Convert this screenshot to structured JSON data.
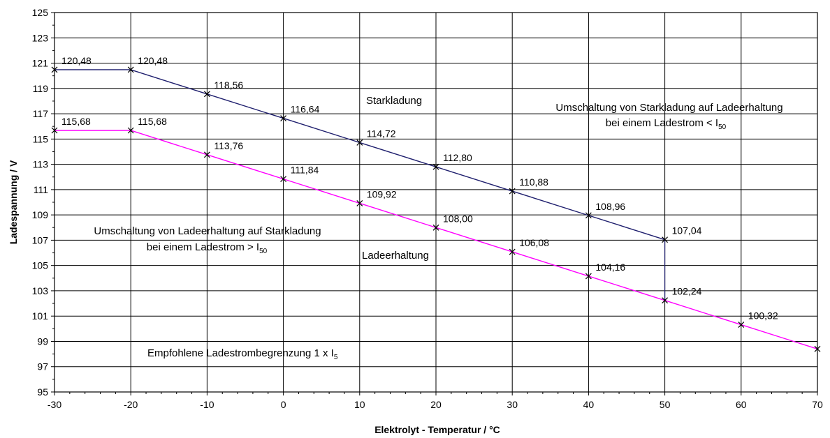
{
  "chart_data": {
    "type": "line",
    "xlabel": "Elektrolyt - Temperatur / °C",
    "ylabel": "Ladespannung / V",
    "xlim": [
      -30,
      70
    ],
    "ylim": [
      95,
      125
    ],
    "x_ticks": [
      "-30",
      "-20",
      "-10",
      "0",
      "10",
      "20",
      "30",
      "40",
      "50",
      "60",
      "70"
    ],
    "y_ticks": [
      "95",
      "97",
      "99",
      "101",
      "103",
      "105",
      "107",
      "109",
      "111",
      "113",
      "115",
      "117",
      "119",
      "121",
      "123",
      "125"
    ],
    "grid": true,
    "series": [
      {
        "name": "Starkladung",
        "color": "#1f1f6e",
        "marker": "x",
        "x": [
          -30,
          -20,
          -10,
          0,
          10,
          20,
          30,
          40,
          50
        ],
        "y": [
          120.48,
          120.48,
          118.56,
          116.64,
          114.72,
          112.8,
          110.88,
          108.96,
          107.04
        ],
        "labels": [
          "120,48",
          "120,48",
          "118,56",
          "116,64",
          "114,72",
          "112,80",
          "110,88",
          "108,96",
          "107,04"
        ]
      },
      {
        "name": "Ladeerhaltung",
        "color": "#ff00ff",
        "marker": "x",
        "x": [
          -30,
          -20,
          -10,
          0,
          10,
          20,
          30,
          40,
          50,
          60,
          70
        ],
        "y": [
          115.68,
          115.68,
          113.76,
          111.84,
          109.92,
          108.0,
          106.08,
          104.16,
          102.24,
          100.32,
          98.4
        ],
        "labels": [
          "115,68",
          "115,68",
          "113,76",
          "111,84",
          "109,92",
          "108,00",
          "106,08",
          "104,16",
          "102,24",
          "100,32",
          ""
        ]
      }
    ],
    "connector": {
      "x": 50,
      "y_from": 107.04,
      "y_to": 102.24,
      "color": "#1f1f6e"
    },
    "annotations": {
      "starkladung": "Starkladung",
      "ladeerhaltung": "Ladeerhaltung",
      "umschaltung_top_line1": "Umschaltung von Starkladung auf Ladeerhaltung",
      "umschaltung_top_line2_main": "bei einem Ladestrom < I",
      "umschaltung_top_line2_sub": "50",
      "umschaltung_left_line1": "Umschaltung von Ladeerhaltung auf Starkladung",
      "umschaltung_left_line2_main": "bei einem Ladestrom > I",
      "umschaltung_left_line2_sub": "50",
      "empfohlen_main": "Empfohlene Ladestrombegrenzung 1 x I",
      "empfohlen_sub": "5"
    }
  }
}
